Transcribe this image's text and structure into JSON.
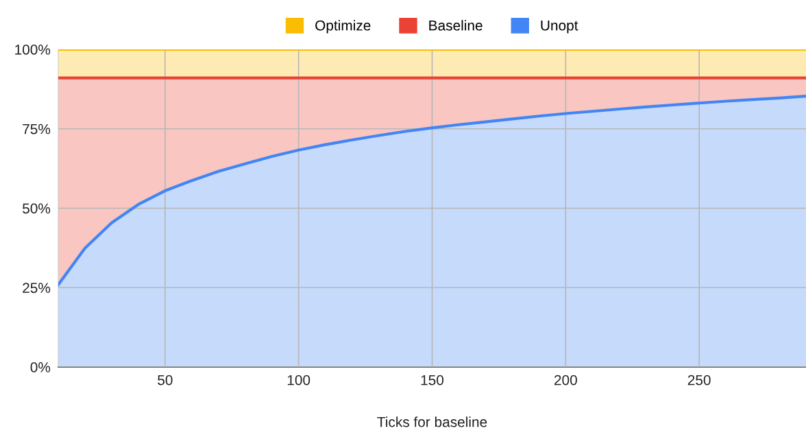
{
  "chart_data": {
    "type": "area",
    "stacked": true,
    "xlabel": "Ticks for baseline",
    "x": [
      10,
      20,
      30,
      40,
      50,
      60,
      70,
      80,
      90,
      100,
      110,
      120,
      130,
      140,
      150,
      160,
      170,
      180,
      190,
      200,
      210,
      220,
      230,
      240,
      250,
      260,
      270,
      280,
      290
    ],
    "series": [
      {
        "name": "Unopt",
        "color": "#4285f4",
        "values": [
          25.9,
          37.4,
          45.4,
          51.2,
          55.5,
          58.7,
          61.6,
          64.0,
          66.3,
          68.3,
          70.0,
          71.5,
          72.9,
          74.2,
          75.3,
          76.3,
          77.2,
          78.1,
          79.0,
          79.8,
          80.5,
          81.2,
          81.9,
          82.5,
          83.1,
          83.7,
          84.2,
          84.7,
          85.3
        ]
      },
      {
        "name": "Baseline",
        "color": "#ea4335",
        "values": [
          65.1,
          53.6,
          45.6,
          39.8,
          35.5,
          32.3,
          29.4,
          27.0,
          24.7,
          22.7,
          21.0,
          19.5,
          18.1,
          16.8,
          15.7,
          14.7,
          13.8,
          12.9,
          12.0,
          11.2,
          10.5,
          9.8,
          9.1,
          8.5,
          7.9,
          7.3,
          6.8,
          6.3,
          5.7
        ]
      },
      {
        "name": "Optimize",
        "color": "#fbbc04",
        "values": [
          9,
          9,
          9,
          9,
          9,
          9,
          9,
          9,
          9,
          9,
          9,
          9,
          9,
          9,
          9,
          9,
          9,
          9,
          9,
          9,
          9,
          9,
          9,
          9,
          9,
          9,
          9,
          9,
          9
        ]
      }
    ],
    "xlim": [
      10,
      290
    ],
    "xticks": [
      50,
      100,
      150,
      200,
      250
    ],
    "ylim": [
      0,
      100
    ],
    "yticks": [
      {
        "value": 0,
        "label": "0%"
      },
      {
        "value": 25,
        "label": "25%"
      },
      {
        "value": 50,
        "label": "50%"
      },
      {
        "value": 75,
        "label": "75%"
      },
      {
        "value": 100,
        "label": "100%"
      }
    ],
    "grid": true,
    "legend": "top"
  }
}
